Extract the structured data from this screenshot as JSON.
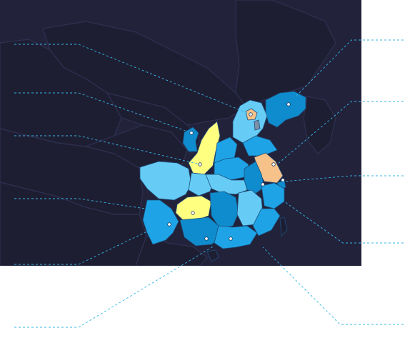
{
  "map": {
    "background": "#22223b",
    "land_dark": "#1e1e33",
    "leader_color": "#35b6e6",
    "palette": {
      "light": "#66ccf5",
      "medium": "#1ea4e6",
      "dark": "#0f8ccd",
      "highlight_yellow": "#ffff80",
      "highlight_orange": "#f7c28a",
      "gray": "#7f8fa6"
    },
    "provinces": [
      {
        "id": "heilongjiang-liaoning",
        "class": "dark"
      },
      {
        "id": "inner-mongolia-small",
        "class": "dark"
      },
      {
        "id": "beijing",
        "class": "highlight_orange"
      },
      {
        "id": "tianjin",
        "class": "gray"
      },
      {
        "id": "hebei",
        "class": "light"
      },
      {
        "id": "shaanxi",
        "class": "highlight_yellow"
      },
      {
        "id": "shanxi",
        "class": "medium"
      },
      {
        "id": "henan",
        "class": "medium"
      },
      {
        "id": "shandong",
        "class": "medium"
      },
      {
        "id": "jiangsu",
        "class": "highlight_orange"
      },
      {
        "id": "shanghai",
        "class": "dark"
      },
      {
        "id": "anhui",
        "class": "dark"
      },
      {
        "id": "hubei",
        "class": "light"
      },
      {
        "id": "sichuan",
        "class": "light"
      },
      {
        "id": "chongqing",
        "class": "light"
      },
      {
        "id": "guizhou",
        "class": "highlight_yellow"
      },
      {
        "id": "hunan",
        "class": "dark"
      },
      {
        "id": "jiangxi",
        "class": "light"
      },
      {
        "id": "zhejiang",
        "class": "medium"
      },
      {
        "id": "fujian",
        "class": "medium"
      },
      {
        "id": "yunnan",
        "class": "medium"
      },
      {
        "id": "guangxi",
        "class": "dark"
      },
      {
        "id": "guangdong",
        "class": "medium"
      }
    ],
    "callouts": [
      {
        "id": "beijing"
      },
      {
        "id": "inner-mongolia"
      },
      {
        "id": "shaanxi"
      },
      {
        "id": "yunnan"
      },
      {
        "id": "guangxi"
      },
      {
        "id": "guangdong"
      },
      {
        "id": "heilongjiang"
      },
      {
        "id": "shandong"
      },
      {
        "id": "shanghai"
      },
      {
        "id": "zhejiang"
      },
      {
        "id": "fujian"
      }
    ]
  }
}
